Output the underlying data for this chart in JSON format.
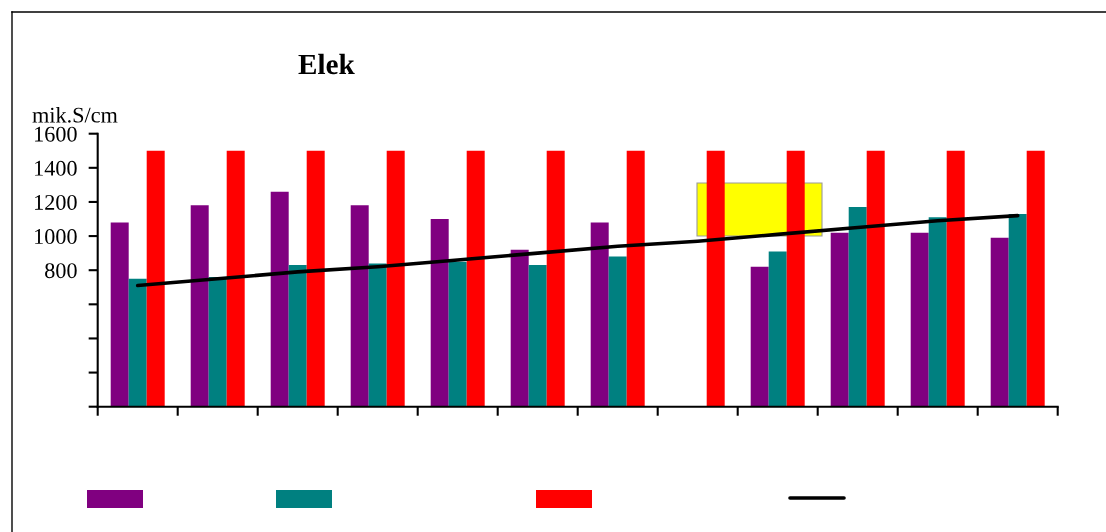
{
  "chart_data": {
    "type": "bar",
    "title": "Elek",
    "ylabel": "mik.S/cm",
    "categories": [
      null,
      null,
      null,
      null,
      null,
      null,
      null,
      null,
      null,
      null,
      null,
      null
    ],
    "series": [
      {
        "color": "#800080",
        "values": [
          1080,
          1180,
          1260,
          1180,
          1100,
          920,
          1080,
          null,
          820,
          1020,
          1020,
          990
        ]
      },
      {
        "color": "#008080",
        "values": [
          750,
          760,
          830,
          840,
          850,
          830,
          880,
          null,
          910,
          1170,
          1110,
          1130
        ]
      },
      {
        "color": "#ff0000",
        "values": [
          1500,
          1500,
          1500,
          1500,
          1500,
          1500,
          1500,
          1500,
          1500,
          1500,
          1500,
          1500
        ]
      },
      {
        "type": "line",
        "color": "#000000",
        "values": [
          710,
          750,
          790,
          820,
          860,
          900,
          940,
          970,
          1010,
          1050,
          1090,
          1120
        ]
      }
    ],
    "ylim": [
      0,
      1600
    ],
    "yticks": [
      {
        "value": 0,
        "label": null
      },
      {
        "value": 200,
        "label": null
      },
      {
        "value": 400,
        "label": null
      },
      {
        "value": 600,
        "label": null
      },
      800,
      1000,
      1200,
      1400,
      1600
    ]
  }
}
